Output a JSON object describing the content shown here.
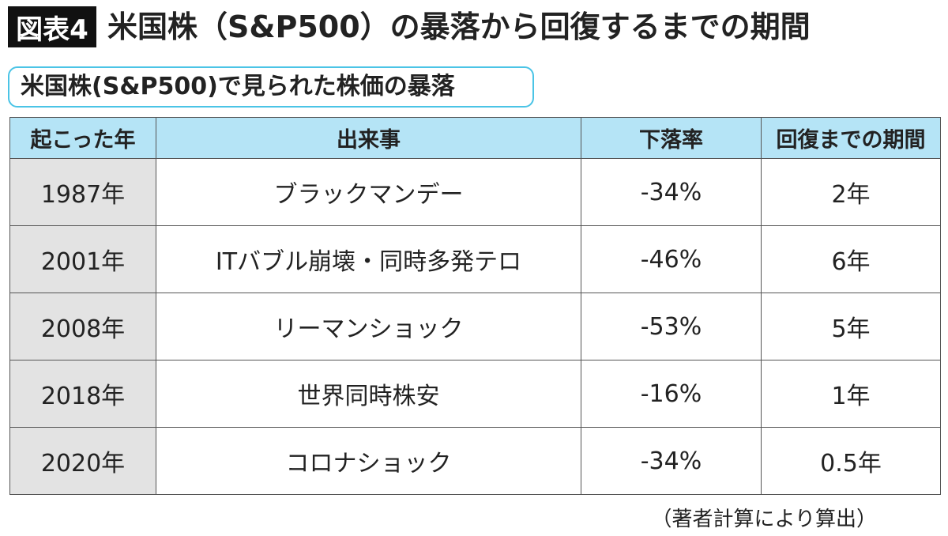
{
  "header": {
    "badge": "図表4",
    "title": "米国株（S&P500）の暴落から回復するまでの期間"
  },
  "subtitle": "米国株(S&P500)で見られた株価の暴落",
  "table": {
    "columns": [
      "起こった年",
      "出来事",
      "下落率",
      "回復までの期間"
    ],
    "rows": [
      [
        "1987年",
        "ブラックマンデー",
        "-34%",
        "2年"
      ],
      [
        "2001年",
        "ITバブル崩壊・同時多発テロ",
        "-46%",
        "6年"
      ],
      [
        "2008年",
        "リーマンショック",
        "-53%",
        "5年"
      ],
      [
        "2018年",
        "世界同時株安",
        "-16%",
        "1年"
      ],
      [
        "2020年",
        "コロナショック",
        "-34%",
        "0.5年"
      ]
    ]
  },
  "footnote": "（著者計算により算出）"
}
